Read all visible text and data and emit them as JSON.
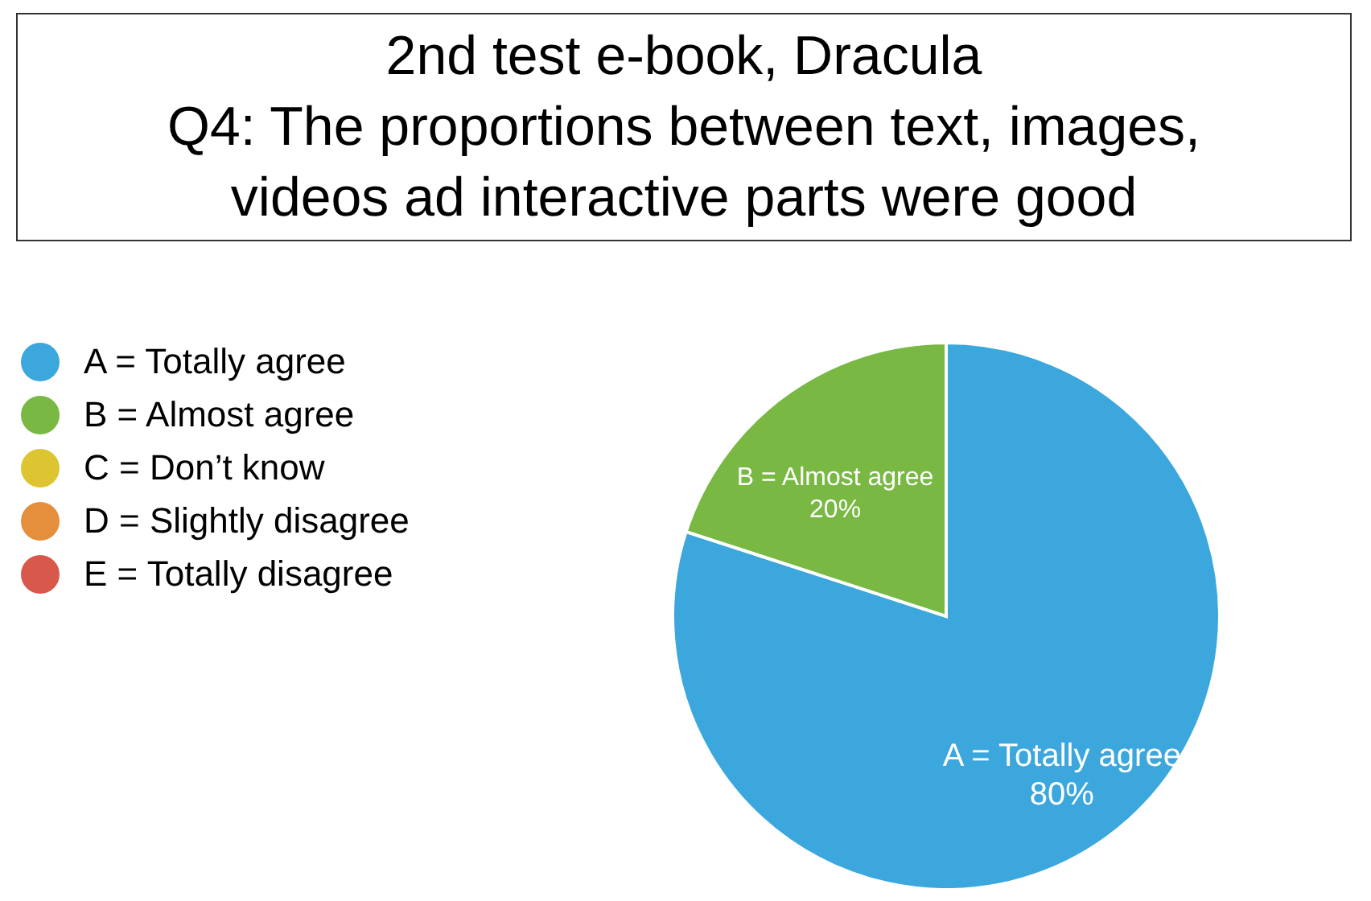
{
  "chart_data": {
    "type": "pie",
    "title": "2nd test e-book, Dracula",
    "subtitle": "Q4: The proportions between text, images, videos ad interactive parts were good",
    "categories": [
      "A = Totally agree",
      "B = Almost agree",
      "C = Don’t know",
      "D = Slightly disagree",
      "E = Totally disagree"
    ],
    "values": [
      80,
      20,
      0,
      0,
      0
    ],
    "colors": [
      "#3ba7dd",
      "#78b843",
      "#dcc531",
      "#e58e3c",
      "#d9584c"
    ],
    "value_labels": [
      "80%",
      "20%",
      null,
      null,
      null
    ],
    "legend": "left"
  }
}
